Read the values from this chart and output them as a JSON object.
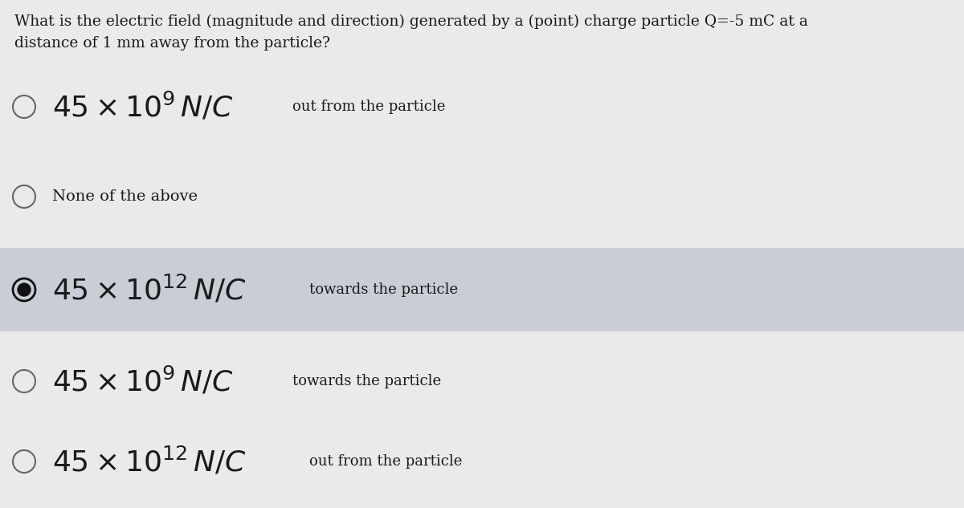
{
  "question": "What is the electric field (magnitude and direction) generated by a (point) charge particle Q=-5 mC at a\ndistance of 1 mm away from the particle?",
  "options": [
    {
      "label": "$45 \\times 10^{9}\\,N/C$",
      "suffix": "out from the particle",
      "selected": false,
      "highlighted": false
    },
    {
      "label": "None of the above",
      "suffix": "",
      "selected": false,
      "highlighted": false
    },
    {
      "label": "$45 \\times 10^{12}\\,N/C$",
      "suffix": "towards the particle",
      "selected": true,
      "highlighted": true
    },
    {
      "label": "$45 \\times 10^{9}\\,N/C$",
      "suffix": "towards the particle",
      "selected": false,
      "highlighted": false
    },
    {
      "label": "$45 \\times 10^{12}\\,N/C$",
      "suffix": "out from the particle",
      "selected": false,
      "highlighted": false
    }
  ],
  "bg_color": "#eaeaea",
  "highlight_color": "#c9cdd5",
  "text_color": "#1a1a1a",
  "radio_color_empty": "#666666",
  "radio_color_filled": "#111111",
  "question_fontsize": 13.5,
  "main_fontsize": 26,
  "sub_fontsize": 13,
  "none_fontsize": 14
}
